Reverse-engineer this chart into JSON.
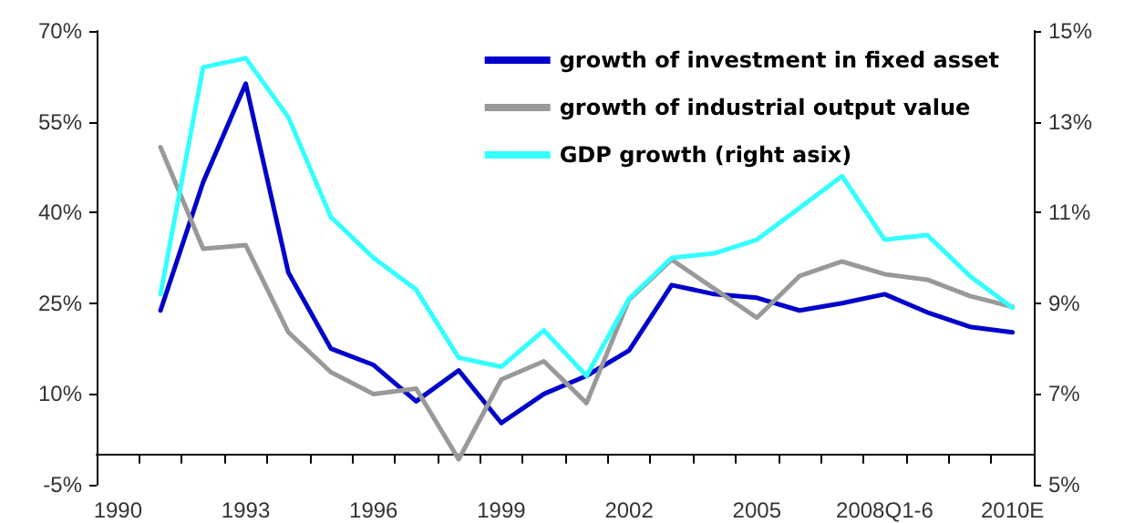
{
  "chart_data": {
    "type": "line",
    "categories": [
      "1990",
      null,
      null,
      "1993",
      null,
      null,
      "1996",
      null,
      null,
      "1999",
      null,
      null,
      "2002",
      null,
      null,
      "2005",
      null,
      null,
      "2008Q1-6",
      null,
      null,
      "2010E"
    ],
    "series": [
      {
        "name": "growth of investment in fixed asset",
        "color": "#0000cc",
        "values": [
          null,
          23.8,
          45,
          61.3,
          30.1,
          17.5,
          14.8,
          8.8,
          13.9,
          5.2,
          10,
          13,
          17.2,
          28,
          26.5,
          25.9,
          23.8,
          25,
          26.5,
          23.5,
          21.1,
          20.2
        ]
      },
      {
        "name": "growth of industrial output value",
        "color": "#999999",
        "values": [
          null,
          50.8,
          34,
          34.6,
          20.2,
          13.6,
          10,
          10.9,
          -0.8,
          12.4,
          15.4,
          8.5,
          25.6,
          32.2,
          27.4,
          22.6,
          29.5,
          31.9,
          29.8,
          28.9,
          26.2,
          24.4
        ]
      },
      {
        "name": "GDP growth (right asix)",
        "color": "#33ffff",
        "axis": "y2",
        "values": [
          null,
          9.2,
          14.2,
          14.4,
          13.1,
          10.9,
          10,
          9.3,
          7.8,
          7.6,
          8.4,
          7.4,
          9.1,
          10,
          10.1,
          10.4,
          11.1,
          11.8,
          10.4,
          10.5,
          9.6,
          8.9
        ]
      }
    ],
    "ylim": [
      -5,
      70
    ],
    "yticks": [
      {
        "value": -5,
        "label": "-5%"
      },
      {
        "value": 10,
        "label": "10%"
      },
      {
        "value": 25,
        "label": "25%"
      },
      {
        "value": 40,
        "label": "40%"
      },
      {
        "value": 55,
        "label": "55%"
      },
      {
        "value": 70,
        "label": "70%"
      }
    ],
    "y2lim": [
      5,
      15
    ],
    "y2ticks": [
      {
        "value": 5,
        "label": "5%"
      },
      {
        "value": 7,
        "label": "7%"
      },
      {
        "value": 9,
        "label": "9%"
      },
      {
        "value": 11,
        "label": "11%"
      },
      {
        "value": 13,
        "label": "13%"
      },
      {
        "value": 15,
        "label": "15%"
      }
    ],
    "grid": false,
    "legend": "top right",
    "marker": "none",
    "line_style": "solid"
  }
}
